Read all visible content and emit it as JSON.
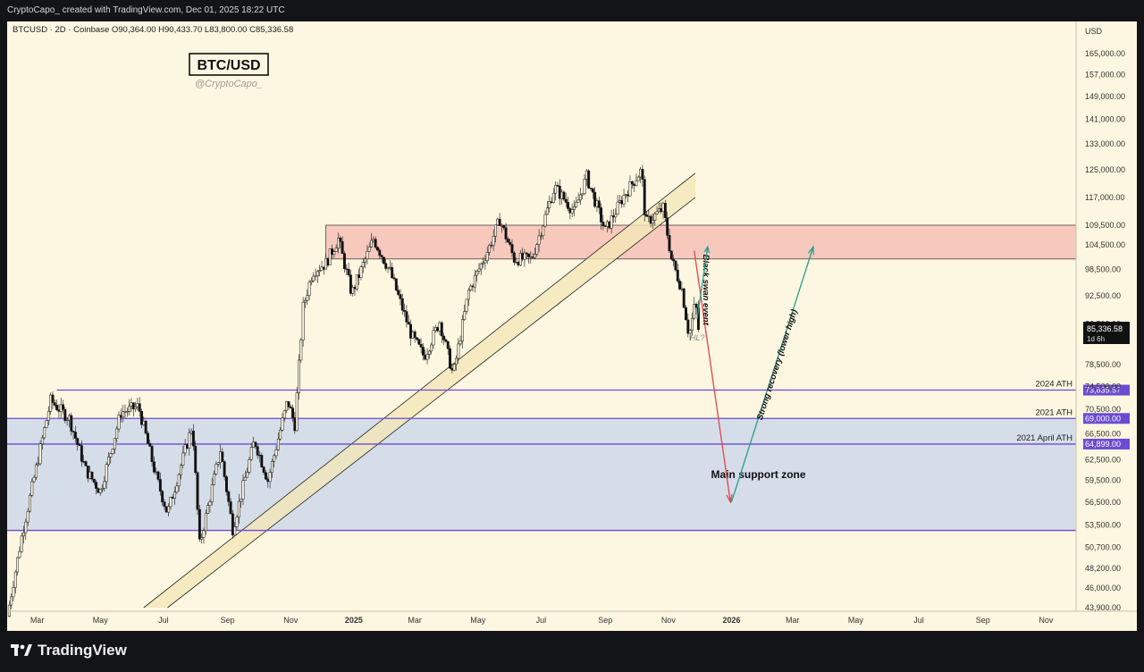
{
  "header": {
    "attribution": "CryptoCapo_ created with TradingView.com, Dec 01, 2025 18:22 UTC"
  },
  "legend": {
    "symbol_line": "BTCUSD · 2D · Coinbase  O90,364.00  H90,433.70  L83,800.00  C85,336.58"
  },
  "watermark": {
    "title": "BTC/USD",
    "author": "@CryptoCapo_"
  },
  "price_axis": {
    "currency": "USD",
    "last_price": "85,336.58",
    "countdown": "1d 6h"
  },
  "footer": {
    "brand": "TradingView"
  },
  "colors": {
    "background": "#fdf6e0",
    "candle": "#111111",
    "resistance_zone": "#f7c9bd",
    "support_zone": "#d5dde8",
    "level_line": "#6b4bd1",
    "red_arrow": "#e0454d",
    "green_arrow": "#2a9d8f"
  },
  "chart_data": {
    "type": "candlestick",
    "symbol": "BTCUSD",
    "timeframe": "2D",
    "exchange": "Coinbase",
    "y_axis": {
      "scale": "log",
      "range": [
        43900,
        165000
      ],
      "ticks": [
        "165,000.00",
        "157,000.00",
        "149,000.00",
        "141,000.00",
        "133,000.00",
        "125,000.00",
        "117,000.00",
        "109,500.00",
        "104,500.00",
        "98,500.00",
        "92,500.00",
        "86,500.00",
        "78,500.00",
        "74,500.00",
        "70,500.00",
        "66,500.00",
        "62,500.00",
        "59,500.00",
        "56,500.00",
        "53,500.00",
        "50,700.00",
        "48,200.00",
        "46,000.00",
        "43,900.00"
      ]
    },
    "x_axis": {
      "range": [
        "2024-02-01",
        "2026-11-30"
      ],
      "ticks": [
        {
          "label": "Mar",
          "date": "2024-03-01"
        },
        {
          "label": "May",
          "date": "2024-05-01"
        },
        {
          "label": "Jul",
          "date": "2024-07-01"
        },
        {
          "label": "Sep",
          "date": "2024-09-01"
        },
        {
          "label": "Nov",
          "date": "2024-11-01"
        },
        {
          "label": "2025",
          "date": "2025-01-01",
          "bold": true
        },
        {
          "label": "Mar",
          "date": "2025-03-01"
        },
        {
          "label": "May",
          "date": "2025-05-01"
        },
        {
          "label": "Jul",
          "date": "2025-07-01"
        },
        {
          "label": "Sep",
          "date": "2025-09-01"
        },
        {
          "label": "Nov",
          "date": "2025-11-01"
        },
        {
          "label": "2026",
          "date": "2026-01-01",
          "bold": true
        },
        {
          "label": "Mar",
          "date": "2026-03-01"
        },
        {
          "label": "May",
          "date": "2026-05-01"
        },
        {
          "label": "Jul",
          "date": "2026-07-01"
        },
        {
          "label": "Sep",
          "date": "2026-09-01"
        },
        {
          "label": "Nov",
          "date": "2026-11-01"
        }
      ]
    },
    "price_path": [
      {
        "date": "2024-02-01",
        "close": 43000
      },
      {
        "date": "2024-02-15",
        "close": 52000
      },
      {
        "date": "2024-03-01",
        "close": 62000
      },
      {
        "date": "2024-03-14",
        "close": 72000
      },
      {
        "date": "2024-04-01",
        "close": 69000
      },
      {
        "date": "2024-04-17",
        "close": 61000
      },
      {
        "date": "2024-05-01",
        "close": 58000
      },
      {
        "date": "2024-05-21",
        "close": 70000
      },
      {
        "date": "2024-06-07",
        "close": 71000
      },
      {
        "date": "2024-06-24",
        "close": 60000
      },
      {
        "date": "2024-07-05",
        "close": 55000
      },
      {
        "date": "2024-07-29",
        "close": 68000
      },
      {
        "date": "2024-08-05",
        "close": 51000
      },
      {
        "date": "2024-08-25",
        "close": 64000
      },
      {
        "date": "2024-09-06",
        "close": 53000
      },
      {
        "date": "2024-09-27",
        "close": 65500
      },
      {
        "date": "2024-10-10",
        "close": 59500
      },
      {
        "date": "2024-10-29",
        "close": 72000
      },
      {
        "date": "2024-11-05",
        "close": 68000
      },
      {
        "date": "2024-11-13",
        "close": 90000
      },
      {
        "date": "2024-11-22",
        "close": 98000
      },
      {
        "date": "2024-12-05",
        "close": 100000
      },
      {
        "date": "2024-12-17",
        "close": 106000
      },
      {
        "date": "2024-12-30",
        "close": 93000
      },
      {
        "date": "2025-01-20",
        "close": 106000
      },
      {
        "date": "2025-02-05",
        "close": 98000
      },
      {
        "date": "2025-02-26",
        "close": 84000
      },
      {
        "date": "2025-03-10",
        "close": 80000
      },
      {
        "date": "2025-03-25",
        "close": 87000
      },
      {
        "date": "2025-04-07",
        "close": 76500
      },
      {
        "date": "2025-04-22",
        "close": 93500
      },
      {
        "date": "2025-05-12",
        "close": 104000
      },
      {
        "date": "2025-05-22",
        "close": 111000
      },
      {
        "date": "2025-06-05",
        "close": 101000
      },
      {
        "date": "2025-06-22",
        "close": 101000
      },
      {
        "date": "2025-07-14",
        "close": 120000
      },
      {
        "date": "2025-08-02",
        "close": 113000
      },
      {
        "date": "2025-08-14",
        "close": 123000
      },
      {
        "date": "2025-09-01",
        "close": 108000
      },
      {
        "date": "2025-09-18",
        "close": 117000
      },
      {
        "date": "2025-10-06",
        "close": 125000
      },
      {
        "date": "2025-10-10",
        "close": 110000
      },
      {
        "date": "2025-10-27",
        "close": 114000
      },
      {
        "date": "2025-11-04",
        "close": 101000
      },
      {
        "date": "2025-11-14",
        "close": 94000
      },
      {
        "date": "2025-11-21",
        "close": 84000
      },
      {
        "date": "2025-11-27",
        "close": 91000
      },
      {
        "date": "2025-12-01",
        "close": 85336.58
      }
    ],
    "zones": [
      {
        "label": "",
        "top": 109500,
        "bottom": 101000,
        "color": "resistance"
      },
      {
        "label": "Main support zone",
        "top": 69000,
        "bottom": 52800,
        "color": "support"
      }
    ],
    "levels": [
      {
        "label": "2024 ATH",
        "value": 73835.57,
        "tag": "73,835.57"
      },
      {
        "label": "2021 ATH",
        "value": 69000,
        "tag": "69,000.00"
      },
      {
        "label": "2021 April ATH",
        "value": 64899,
        "tag": "64,899.00"
      },
      {
        "label": "",
        "value": 52800,
        "tag": ""
      }
    ],
    "channel": [
      {
        "from": {
          "date": "2024-06-12",
          "value": 43900
        },
        "to": {
          "date": "2025-11-27",
          "value": 124000
        }
      },
      {
        "from": {
          "date": "2024-07-05",
          "value": 43900
        },
        "to": {
          "date": "2025-11-27",
          "value": 117000
        }
      }
    ],
    "annotations": [
      {
        "text": "Black swan event",
        "arrow": "down",
        "color": "red",
        "from": {
          "date": "2025-11-26",
          "value": 103000
        },
        "to": {
          "date": "2025-12-31",
          "value": 56500
        }
      },
      {
        "text": "HL?",
        "arrow": "up",
        "color": "green",
        "from": {
          "date": "2025-11-27",
          "value": 86000
        },
        "to": {
          "date": "2025-12-09",
          "value": 104000
        }
      },
      {
        "text": "Strong recovery (lower high)",
        "arrow": "up",
        "color": "green",
        "from": {
          "date": "2026-01-01",
          "value": 56500
        },
        "to": {
          "date": "2026-03-21",
          "value": 104000
        }
      }
    ]
  }
}
